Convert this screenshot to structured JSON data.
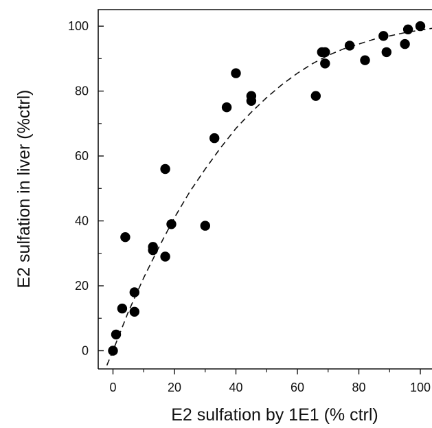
{
  "chart_data": {
    "type": "scatter",
    "xlabel": "E2 sulfation by 1E1 (% ctrl)",
    "ylabel": "E2 sulfation in liver (%ctrl)",
    "xlim": [
      -5,
      105
    ],
    "ylim": [
      -5,
      105
    ],
    "xticks": [
      0,
      20,
      40,
      60,
      80,
      100
    ],
    "yticks": [
      0,
      20,
      40,
      60,
      80,
      100
    ],
    "xtick_labels": [
      "0",
      "20",
      "40",
      "60",
      "80",
      "100"
    ],
    "ytick_labels": [
      "0",
      "20",
      "40",
      "60",
      "80",
      "100"
    ],
    "grid": false,
    "frame": "left-top-right box with bottom axis line",
    "points_color": "#000000",
    "series": [
      {
        "marker": "filled-circle",
        "x": [
          0,
          1,
          3,
          4,
          7,
          7,
          13,
          13,
          17,
          17,
          19,
          30,
          33,
          37,
          40,
          45,
          45,
          66,
          68,
          69,
          69,
          77,
          82,
          88,
          89,
          95,
          96,
          100
        ],
        "y": [
          0,
          5,
          13,
          35,
          12,
          18,
          31,
          32,
          29,
          56,
          39,
          38.5,
          65.5,
          75,
          85.5,
          78.5,
          77,
          78.5,
          92,
          88.5,
          92,
          94,
          89.5,
          97,
          92,
          94.5,
          99,
          100
        ]
      },
      {
        "style": "dashed-curve",
        "x": [
          -2,
          0,
          5,
          10,
          15,
          20,
          25,
          30,
          35,
          40,
          45,
          50,
          55,
          60,
          65,
          70,
          75,
          80,
          85,
          90,
          95,
          100,
          105
        ],
        "y": [
          -4.5,
          0,
          12,
          22.5,
          32,
          41,
          49,
          56,
          62.5,
          68.5,
          73.5,
          78,
          82,
          85.5,
          88.5,
          91,
          93,
          94.5,
          96,
          97,
          98,
          98.8,
          99.5
        ]
      }
    ]
  }
}
